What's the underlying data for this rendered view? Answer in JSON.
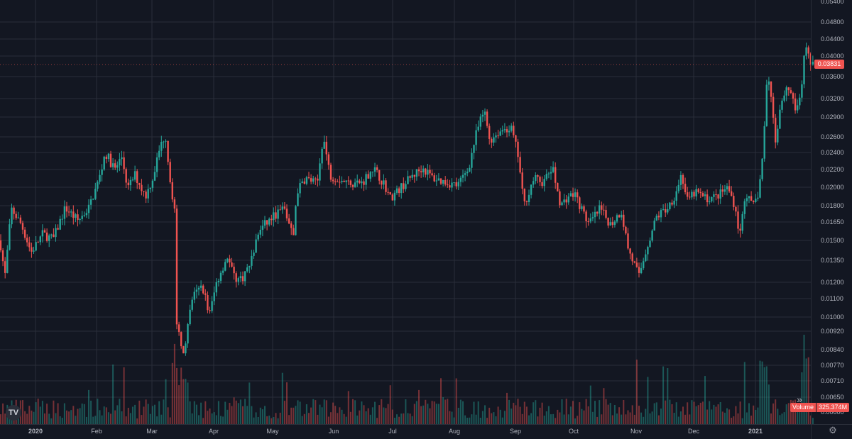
{
  "chart_data": {
    "type": "candlestick",
    "x_ticks": [
      "2020",
      "Feb",
      "Mar",
      "Apr",
      "May",
      "Jun",
      "Jul",
      "Aug",
      "Sep",
      "Oct",
      "Nov",
      "Dec",
      "2021"
    ],
    "y_ticks": [
      "0.05400",
      "0.04800",
      "0.04400",
      "0.04000",
      "0.03600",
      "0.03200",
      "0.02900",
      "0.02600",
      "0.02400",
      "0.02200",
      "0.02000",
      "0.01800",
      "0.01650",
      "0.01500",
      "0.01350",
      "0.01200",
      "0.01100",
      "0.01000",
      "0.00920",
      "0.00840",
      "0.00770",
      "0.00710",
      "0.00650",
      "0.00600"
    ],
    "y_scale": "log",
    "last_price": "0.03831",
    "volume_label": "Volume",
    "volume_value": "325.374M",
    "close_anchors": [
      [
        0,
        0.015
      ],
      [
        7,
        0.0124
      ],
      [
        16,
        0.0177
      ],
      [
        30,
        0.0163
      ],
      [
        44,
        0.0141
      ],
      [
        60,
        0.0155
      ],
      [
        75,
        0.0151
      ],
      [
        92,
        0.0178
      ],
      [
        110,
        0.0166
      ],
      [
        125,
        0.0178
      ],
      [
        140,
        0.021
      ],
      [
        148,
        0.024
      ],
      [
        162,
        0.022
      ],
      [
        172,
        0.0235
      ],
      [
        180,
        0.0198
      ],
      [
        190,
        0.0214
      ],
      [
        205,
        0.019
      ],
      [
        215,
        0.021
      ],
      [
        225,
        0.0245
      ],
      [
        233,
        0.0265
      ],
      [
        240,
        0.0205
      ],
      [
        246,
        0.0175
      ],
      [
        248,
        0.0096
      ],
      [
        260,
        0.0082
      ],
      [
        270,
        0.011
      ],
      [
        285,
        0.0118
      ],
      [
        295,
        0.0101
      ],
      [
        305,
        0.012
      ],
      [
        320,
        0.0138
      ],
      [
        330,
        0.0123
      ],
      [
        340,
        0.0122
      ],
      [
        352,
        0.0132
      ],
      [
        365,
        0.0158
      ],
      [
        385,
        0.017
      ],
      [
        400,
        0.0178
      ],
      [
        413,
        0.0152
      ],
      [
        418,
        0.0195
      ],
      [
        430,
        0.021
      ],
      [
        447,
        0.0204
      ],
      [
        455,
        0.0262
      ],
      [
        465,
        0.0213
      ],
      [
        475,
        0.021
      ],
      [
        490,
        0.0205
      ],
      [
        510,
        0.0205
      ],
      [
        525,
        0.0222
      ],
      [
        540,
        0.0205
      ],
      [
        550,
        0.0188
      ],
      [
        565,
        0.02
      ],
      [
        580,
        0.0212
      ],
      [
        595,
        0.0222
      ],
      [
        610,
        0.021
      ],
      [
        630,
        0.0205
      ],
      [
        645,
        0.0202
      ],
      [
        660,
        0.0222
      ],
      [
        672,
        0.027
      ],
      [
        682,
        0.03
      ],
      [
        690,
        0.0255
      ],
      [
        700,
        0.0265
      ],
      [
        710,
        0.0272
      ],
      [
        720,
        0.0272
      ],
      [
        730,
        0.0235
      ],
      [
        738,
        0.018
      ],
      [
        745,
        0.0195
      ],
      [
        752,
        0.021
      ],
      [
        765,
        0.0205
      ],
      [
        778,
        0.0222
      ],
      [
        790,
        0.018
      ],
      [
        800,
        0.019
      ],
      [
        810,
        0.0192
      ],
      [
        820,
        0.0175
      ],
      [
        830,
        0.0163
      ],
      [
        845,
        0.0177
      ],
      [
        860,
        0.0163
      ],
      [
        875,
        0.0175
      ],
      [
        885,
        0.0143
      ],
      [
        900,
        0.0124
      ],
      [
        910,
        0.0143
      ],
      [
        925,
        0.017
      ],
      [
        940,
        0.0178
      ],
      [
        950,
        0.019
      ],
      [
        960,
        0.0215
      ],
      [
        968,
        0.0185
      ],
      [
        980,
        0.0195
      ],
      [
        995,
        0.0187
      ],
      [
        1010,
        0.019
      ],
      [
        1025,
        0.02
      ],
      [
        1035,
        0.018
      ],
      [
        1042,
        0.0153
      ],
      [
        1050,
        0.0195
      ],
      [
        1060,
        0.0178
      ],
      [
        1068,
        0.0193
      ],
      [
        1075,
        0.024
      ],
      [
        1080,
        0.0352
      ],
      [
        1085,
        0.034
      ],
      [
        1092,
        0.0255
      ],
      [
        1100,
        0.0315
      ],
      [
        1108,
        0.034
      ],
      [
        1115,
        0.033
      ],
      [
        1122,
        0.0295
      ],
      [
        1128,
        0.033
      ],
      [
        1134,
        0.042
      ],
      [
        1140,
        0.0395
      ],
      [
        1146,
        0.0383
      ]
    ]
  }
}
